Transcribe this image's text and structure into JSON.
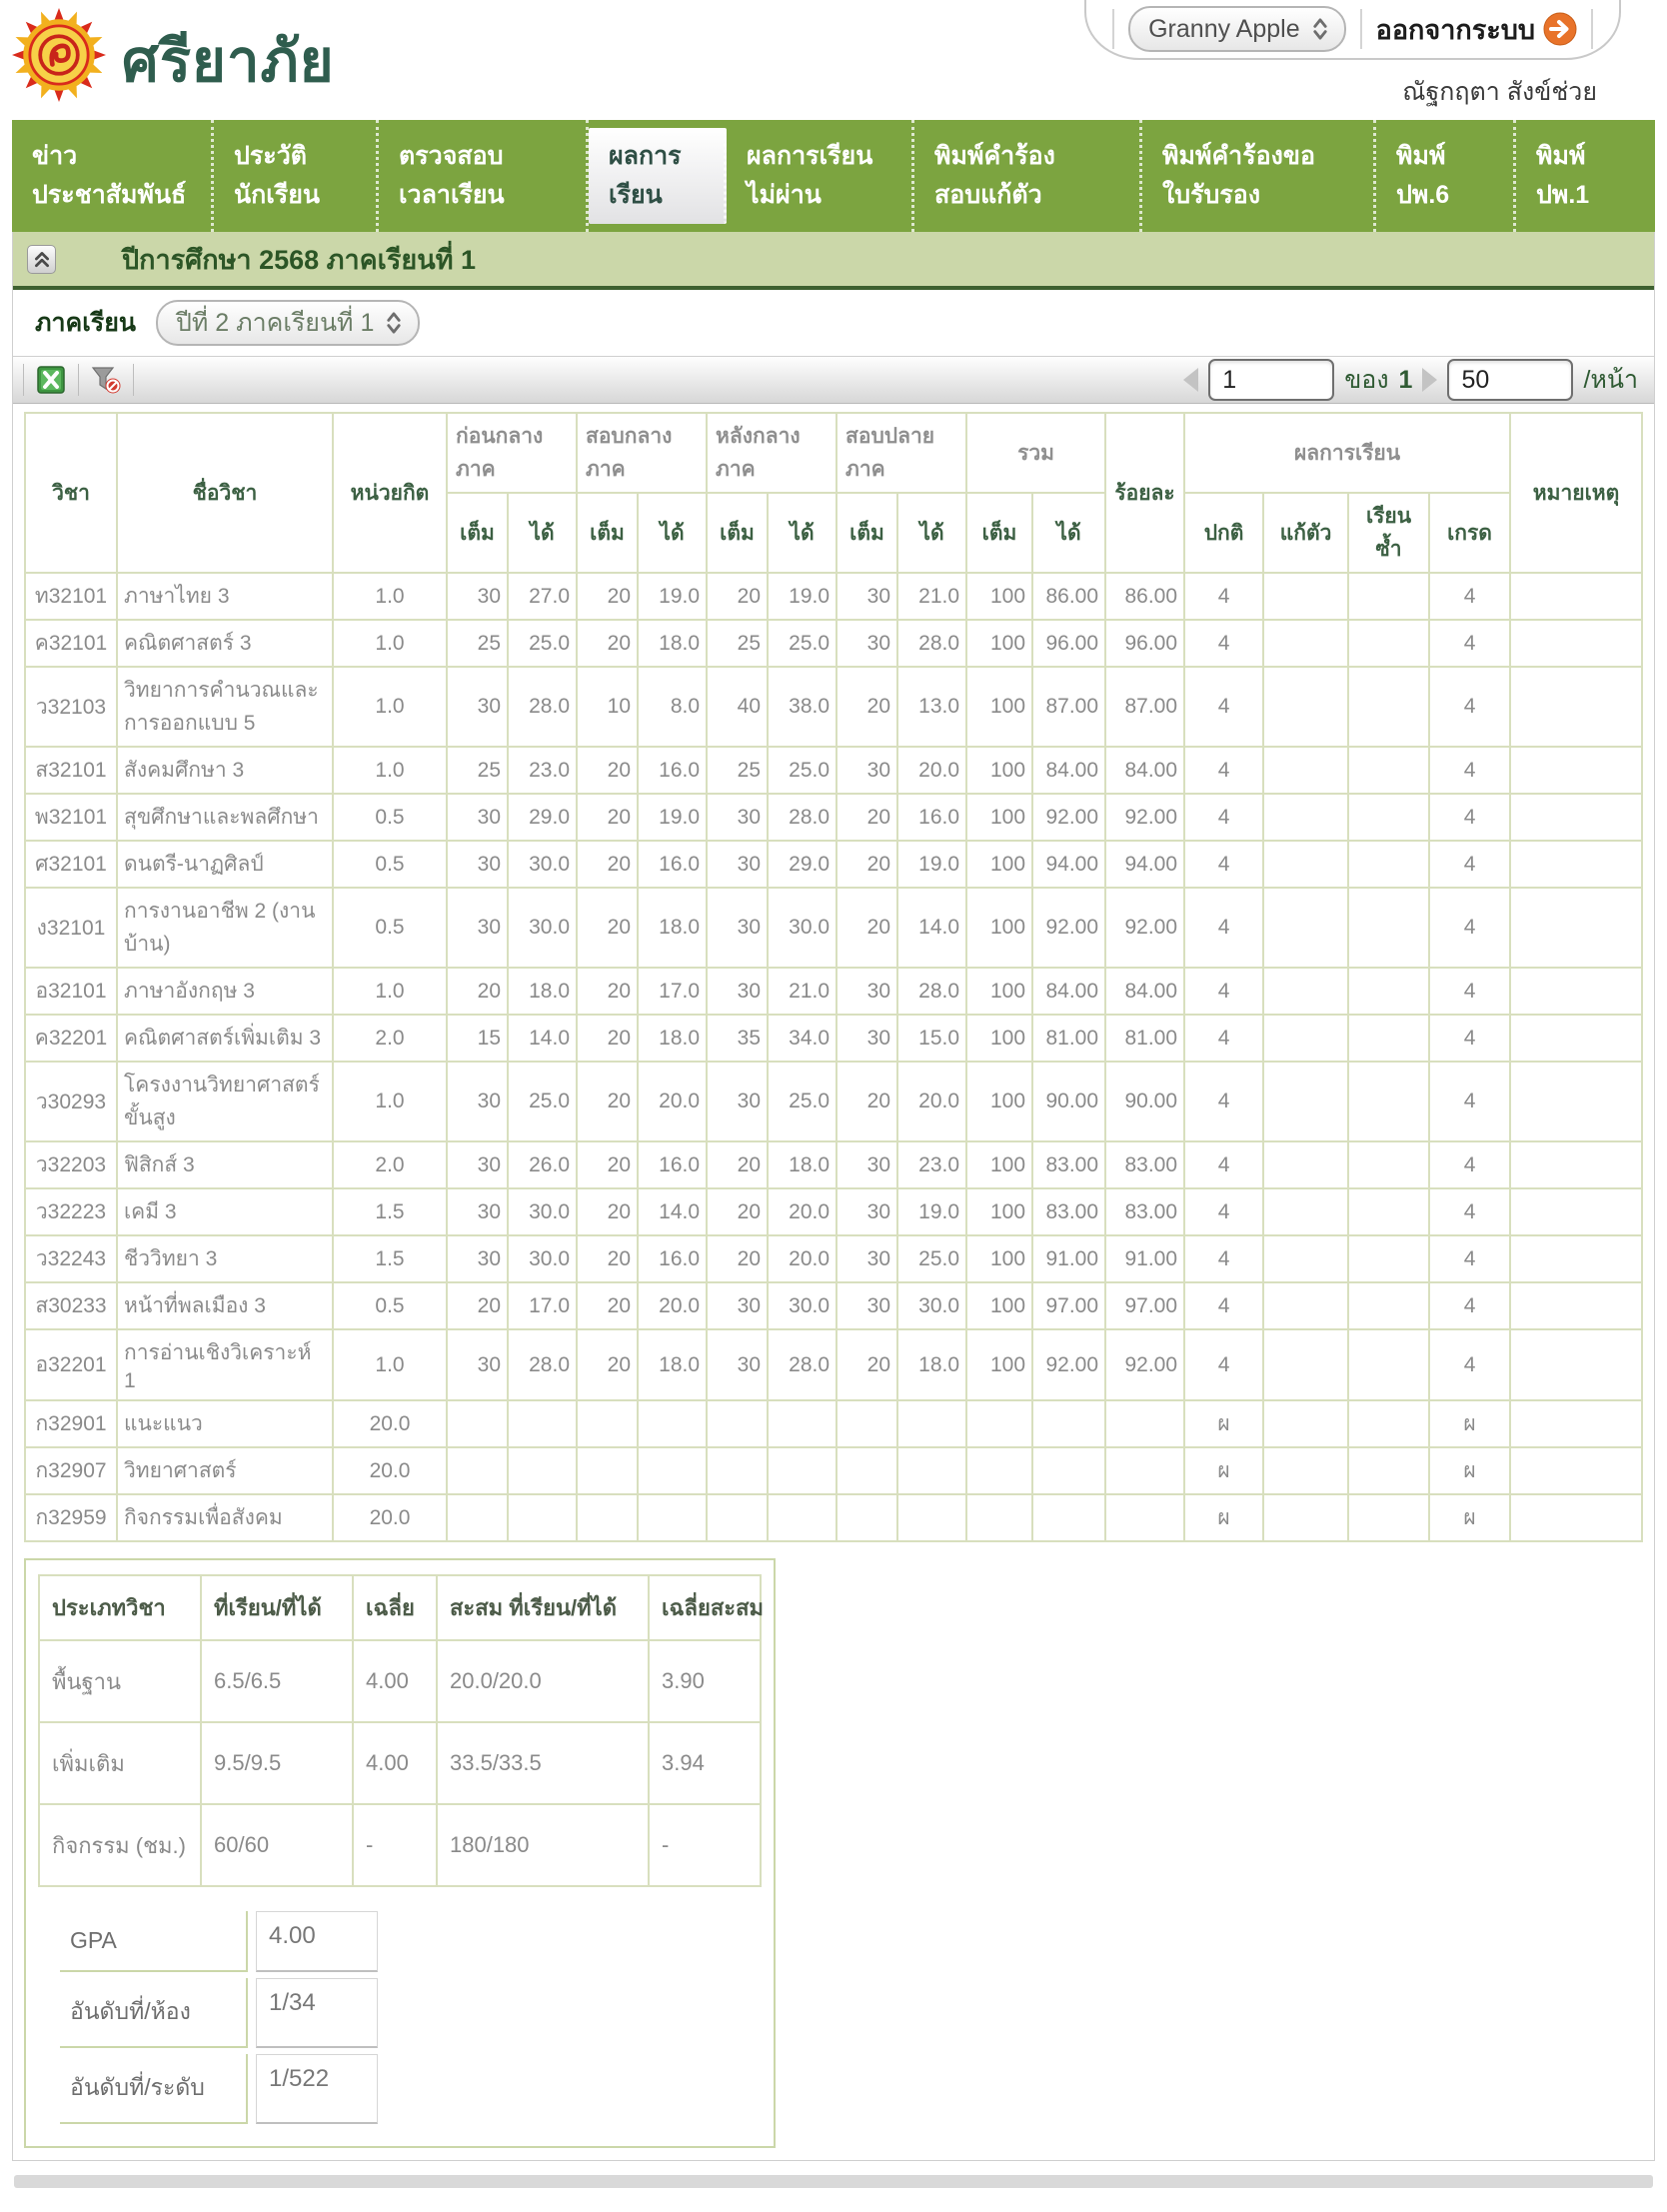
{
  "header": {
    "school_name": "ศรียาภัย",
    "account_select": "Granny Apple",
    "logout_label": "ออกจากระบบ",
    "user_name": "ณัฐกฤตา สังข์ช่วย"
  },
  "nav": {
    "tabs": [
      {
        "label": "ข่าว\nประชาสัมพันธ์"
      },
      {
        "label": "ประวัติ\nนักเรียน"
      },
      {
        "label": "ตรวจสอบ\nเวลาเรียน"
      },
      {
        "label": "ผลการ\nเรียน"
      },
      {
        "label": "ผลการเรียน\nไม่ผ่าน"
      },
      {
        "label": "พิมพ์คำร้อง\nสอบแก้ตัว"
      },
      {
        "label": "พิมพ์คำร้องขอ\nใบรับรอง"
      },
      {
        "label": "พิมพ์\nปพ.6"
      },
      {
        "label": "พิมพ์\nปพ.1"
      }
    ]
  },
  "section": {
    "title": "ปีการศึกษา 2568 ภาคเรียนที่ 1"
  },
  "filter": {
    "label": "ภาคเรียน",
    "semester_value": "ปีที่ 2 ภาคเรียนที่ 1"
  },
  "pager": {
    "page": "1",
    "of_label": "ของ",
    "total": "1",
    "per_page": "50",
    "per_page_label": "/หน้า"
  },
  "grades_table": {
    "col_headers": {
      "subject": "วิชา",
      "subject_name": "ชื่อวิชา",
      "credit": "หน่วยกิต",
      "pre_mid": "ก่อนกลางภาค",
      "mid_exam": "สอบกลางภาค",
      "post_mid": "หลังกลางภาค",
      "final_exam": "สอบปลายภาค",
      "total": "รวม",
      "percent": "ร้อยละ",
      "result": "ผลการเรียน",
      "note": "หมายเหตุ",
      "full": "เต็ม",
      "got": "ได้",
      "normal": "ปกติ",
      "retake": "แก้ตัว",
      "repeat": "เรียนซ้ำ",
      "grade": "เกรด"
    },
    "rows": [
      [
        "ท32101",
        "ภาษาไทย 3",
        "1.0",
        "30",
        "27.0",
        "20",
        "19.0",
        "20",
        "19.0",
        "30",
        "21.0",
        "100",
        "86.00",
        "86.00",
        "4",
        "",
        "",
        "4",
        ""
      ],
      [
        "ค32101",
        "คณิตศาสตร์ 3",
        "1.0",
        "25",
        "25.0",
        "20",
        "18.0",
        "25",
        "25.0",
        "30",
        "28.0",
        "100",
        "96.00",
        "96.00",
        "4",
        "",
        "",
        "4",
        ""
      ],
      [
        "ว32103",
        "วิทยาการคำนวณและการออกแบบ 5",
        "1.0",
        "30",
        "28.0",
        "10",
        "8.0",
        "40",
        "38.0",
        "20",
        "13.0",
        "100",
        "87.00",
        "87.00",
        "4",
        "",
        "",
        "4",
        ""
      ],
      [
        "ส32101",
        "สังคมศึกษา 3",
        "1.0",
        "25",
        "23.0",
        "20",
        "16.0",
        "25",
        "25.0",
        "30",
        "20.0",
        "100",
        "84.00",
        "84.00",
        "4",
        "",
        "",
        "4",
        ""
      ],
      [
        "พ32101",
        "สุขศึกษาและพลศึกษา",
        "0.5",
        "30",
        "29.0",
        "20",
        "19.0",
        "30",
        "28.0",
        "20",
        "16.0",
        "100",
        "92.00",
        "92.00",
        "4",
        "",
        "",
        "4",
        ""
      ],
      [
        "ศ32101",
        "ดนตรี-นาฏศิลป์",
        "0.5",
        "30",
        "30.0",
        "20",
        "16.0",
        "30",
        "29.0",
        "20",
        "19.0",
        "100",
        "94.00",
        "94.00",
        "4",
        "",
        "",
        "4",
        ""
      ],
      [
        "ง32101",
        "การงานอาชีพ 2 (งานบ้าน)",
        "0.5",
        "30",
        "30.0",
        "20",
        "18.0",
        "30",
        "30.0",
        "20",
        "14.0",
        "100",
        "92.00",
        "92.00",
        "4",
        "",
        "",
        "4",
        ""
      ],
      [
        "อ32101",
        "ภาษาอังกฤษ 3",
        "1.0",
        "20",
        "18.0",
        "20",
        "17.0",
        "30",
        "21.0",
        "30",
        "28.0",
        "100",
        "84.00",
        "84.00",
        "4",
        "",
        "",
        "4",
        ""
      ],
      [
        "ค32201",
        "คณิตศาสตร์เพิ่มเติม 3",
        "2.0",
        "15",
        "14.0",
        "20",
        "18.0",
        "35",
        "34.0",
        "30",
        "15.0",
        "100",
        "81.00",
        "81.00",
        "4",
        "",
        "",
        "4",
        ""
      ],
      [
        "ว30293",
        "โครงงานวิทยาศาสตร์ขั้นสูง",
        "1.0",
        "30",
        "25.0",
        "20",
        "20.0",
        "30",
        "25.0",
        "20",
        "20.0",
        "100",
        "90.00",
        "90.00",
        "4",
        "",
        "",
        "4",
        ""
      ],
      [
        "ว32203",
        "ฟิสิกส์ 3",
        "2.0",
        "30",
        "26.0",
        "20",
        "16.0",
        "20",
        "18.0",
        "30",
        "23.0",
        "100",
        "83.00",
        "83.00",
        "4",
        "",
        "",
        "4",
        ""
      ],
      [
        "ว32223",
        "เคมี 3",
        "1.5",
        "30",
        "30.0",
        "20",
        "14.0",
        "20",
        "20.0",
        "30",
        "19.0",
        "100",
        "83.00",
        "83.00",
        "4",
        "",
        "",
        "4",
        ""
      ],
      [
        "ว32243",
        "ชีววิทยา 3",
        "1.5",
        "30",
        "30.0",
        "20",
        "16.0",
        "20",
        "20.0",
        "30",
        "25.0",
        "100",
        "91.00",
        "91.00",
        "4",
        "",
        "",
        "4",
        ""
      ],
      [
        "ส30233",
        "หน้าที่พลเมือง 3",
        "0.5",
        "20",
        "17.0",
        "20",
        "20.0",
        "30",
        "30.0",
        "30",
        "30.0",
        "100",
        "97.00",
        "97.00",
        "4",
        "",
        "",
        "4",
        ""
      ],
      [
        "อ32201",
        "การอ่านเชิงวิเคราะห์ 1",
        "1.0",
        "30",
        "28.0",
        "20",
        "18.0",
        "30",
        "28.0",
        "20",
        "18.0",
        "100",
        "92.00",
        "92.00",
        "4",
        "",
        "",
        "4",
        ""
      ],
      [
        "ก32901",
        "แนะแนว",
        "20.0",
        "",
        "",
        "",
        "",
        "",
        "",
        "",
        "",
        "",
        "",
        "",
        "ผ",
        "",
        "",
        "ผ",
        ""
      ],
      [
        "ก32907",
        "วิทยาศาสตร์",
        "20.0",
        "",
        "",
        "",
        "",
        "",
        "",
        "",
        "",
        "",
        "",
        "",
        "ผ",
        "",
        "",
        "ผ",
        ""
      ],
      [
        "ก32959",
        "กิจกรรมเพื่อสังคม",
        "20.0",
        "",
        "",
        "",
        "",
        "",
        "",
        "",
        "",
        "",
        "",
        "",
        "ผ",
        "",
        "",
        "ผ",
        ""
      ]
    ]
  },
  "summary_table": {
    "headers": [
      "ประเภทวิชา",
      "ที่เรียน/ที่ได้",
      "เฉลี่ย",
      "สะสม ที่เรียน/ที่ได้",
      "เฉลี่ยสะสม"
    ],
    "rows": [
      [
        "พื้นฐาน",
        "6.5/6.5",
        "4.00",
        "20.0/20.0",
        "3.90"
      ],
      [
        "เพิ่มเติม",
        "9.5/9.5",
        "4.00",
        "33.5/33.5",
        "3.94"
      ],
      [
        "กิจกรรม (ชม.)",
        "60/60",
        "-",
        "180/180",
        "-"
      ]
    ]
  },
  "gpa_table": {
    "rows": [
      {
        "label": "GPA",
        "value": "4.00"
      },
      {
        "label": "อันดับที่/ห้อง",
        "value": "1/34"
      },
      {
        "label": "อันดับที่/ระดับ",
        "value": "1/522"
      }
    ]
  },
  "colors": {
    "nav_green": "#7CA440",
    "section_green": "#CBD7A9",
    "dark_green_border": "#3E6030",
    "table_border": "#D8DFBE",
    "logout_orange": "#E8732A"
  }
}
